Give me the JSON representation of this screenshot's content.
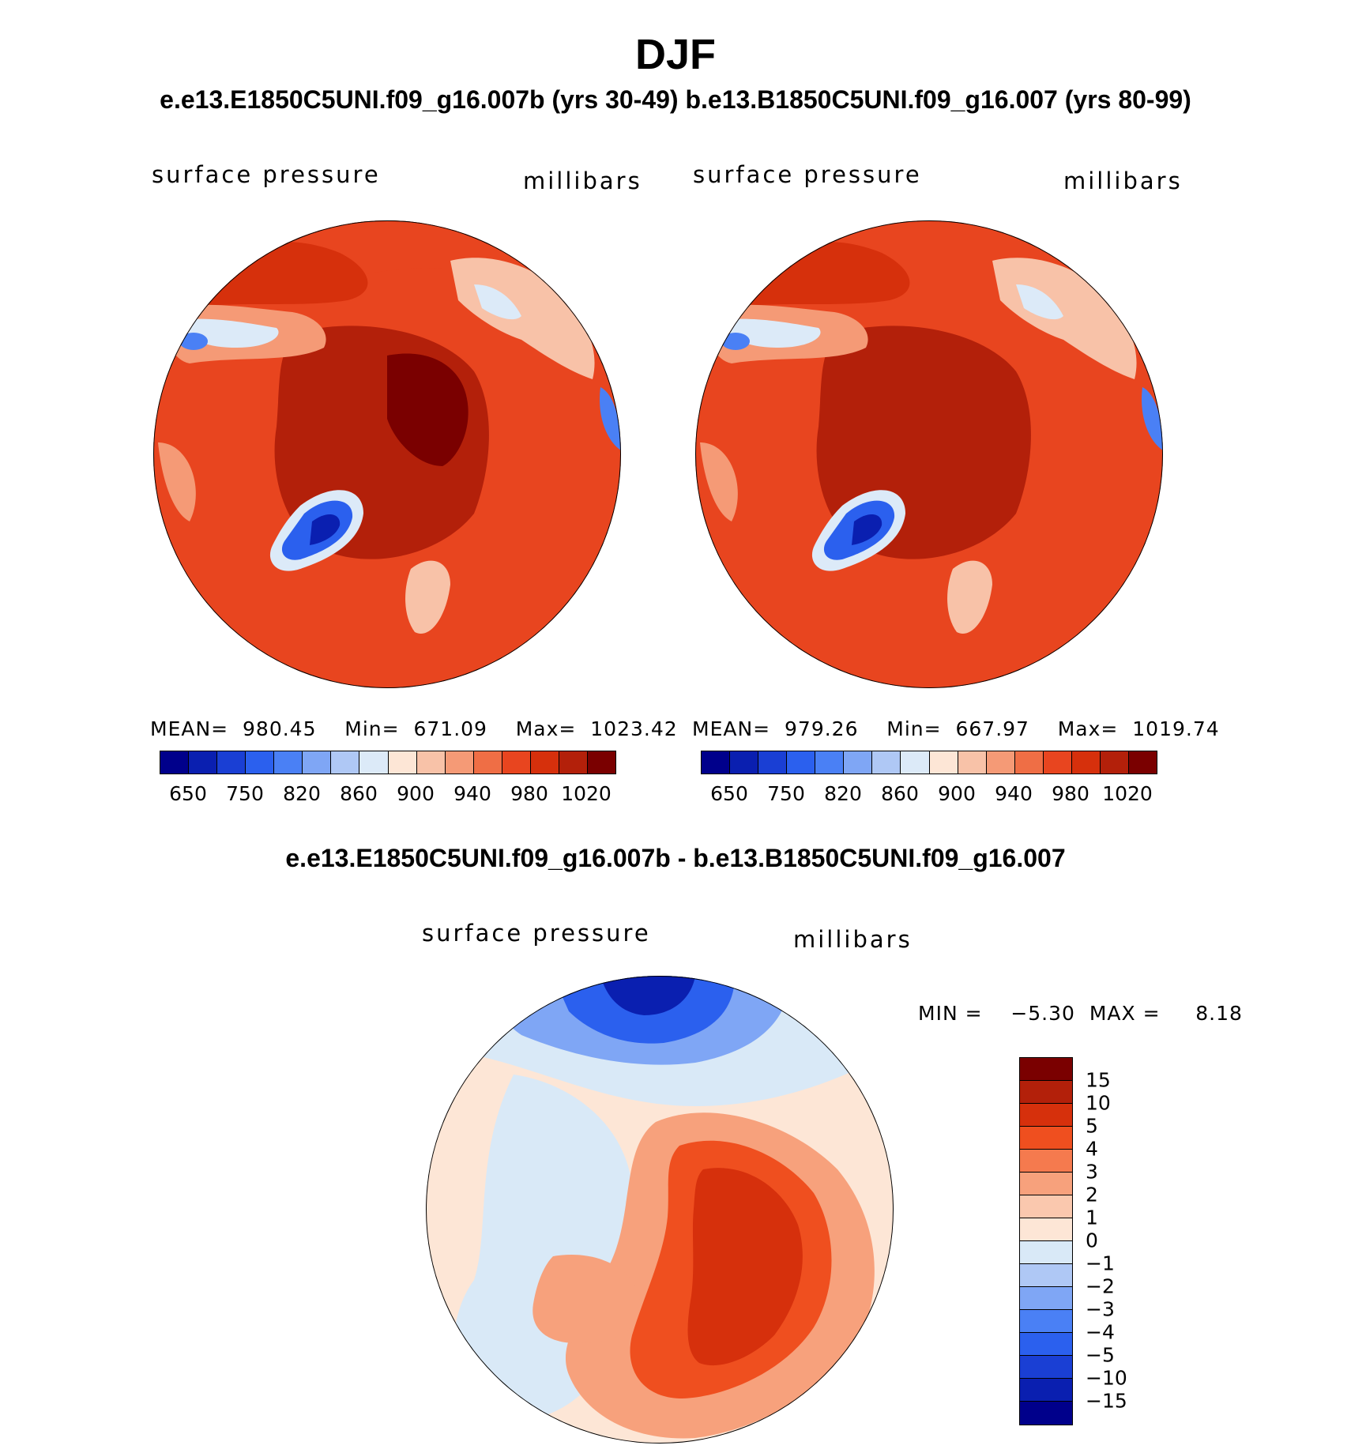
{
  "chart_data": [
    {
      "type": "heatmap",
      "projection": "north polar stereographic",
      "title": "DJF",
      "subtitle": "e.e13.E1850C5UNI.f09_g16.007b (yrs 30-49)",
      "left_label": "surface pressure",
      "right_label": "millibars",
      "stats": {
        "mean": "980.45",
        "min": "671.09",
        "max": "1023.42"
      },
      "stats_text": "MEAN=  980.45    Min=  671.09    Max=  1023.42",
      "colorbar_levels": [
        "650",
        "750",
        "820",
        "860",
        "900",
        "940",
        "980",
        "1020"
      ],
      "units": "millibars"
    },
    {
      "type": "heatmap",
      "projection": "north polar stereographic",
      "subtitle": "b.e13.B1850C5UNI.f09_g16.007 (yrs 80-99)",
      "left_label": "surface pressure",
      "right_label": "millibars",
      "stats": {
        "mean": "979.26",
        "min": "667.97",
        "max": "1019.74"
      },
      "stats_text": "MEAN=  979.26    Min=  667.97    Max=  1019.74",
      "colorbar_levels": [
        "650",
        "750",
        "820",
        "860",
        "900",
        "940",
        "980",
        "1020"
      ],
      "units": "millibars"
    },
    {
      "type": "heatmap",
      "projection": "north polar stereographic",
      "title": "e.e13.E1850C5UNI.f09_g16.007b - b.e13.B1850C5UNI.f09_g16.007",
      "left_label": "surface pressure",
      "right_label": "millibars",
      "stats": {
        "min": "−5.30",
        "max": "8.18"
      },
      "stats_text": "MIN =    −5.30  MAX =     8.18",
      "colorbar_levels": [
        "15",
        "10",
        "5",
        "4",
        "3",
        "2",
        "1",
        "0",
        "−1",
        "−2",
        "−3",
        "−4",
        "−5",
        "−10",
        "−15"
      ],
      "units": "millibars"
    }
  ],
  "page": {
    "main_title": "DJF",
    "subtitle_full": "e.e13.E1850C5UNI.f09_g16.007b (yrs 30-49)  b.e13.B1850C5UNI.f09_g16.007 (yrs 80-99)",
    "diff_title": "e.e13.E1850C5UNI.f09_g16.007b - b.e13.B1850C5UNI.f09_g16.007"
  },
  "colors": {
    "abs_palette": [
      "#00008b",
      "#0a1fb0",
      "#1a3fd4",
      "#2b60ee",
      "#4a80f5",
      "#7fa6f5",
      "#afc8f5",
      "#dceaf8",
      "#fde6d6",
      "#f8c2a8",
      "#f59a76",
      "#ef6e45",
      "#e8451f",
      "#d6300c",
      "#b3200a",
      "#7a0000"
    ],
    "diff_palette": [
      "#7a0000",
      "#b3200a",
      "#d6300c",
      "#ef4f1f",
      "#f57a4e",
      "#f7a17c",
      "#fac8ae",
      "#fde6d6",
      "#d9e9f7",
      "#afc8f5",
      "#7fa6f5",
      "#4a80f5",
      "#2b60ee",
      "#1a3fd4",
      "#0a1fb0",
      "#00008b"
    ]
  }
}
